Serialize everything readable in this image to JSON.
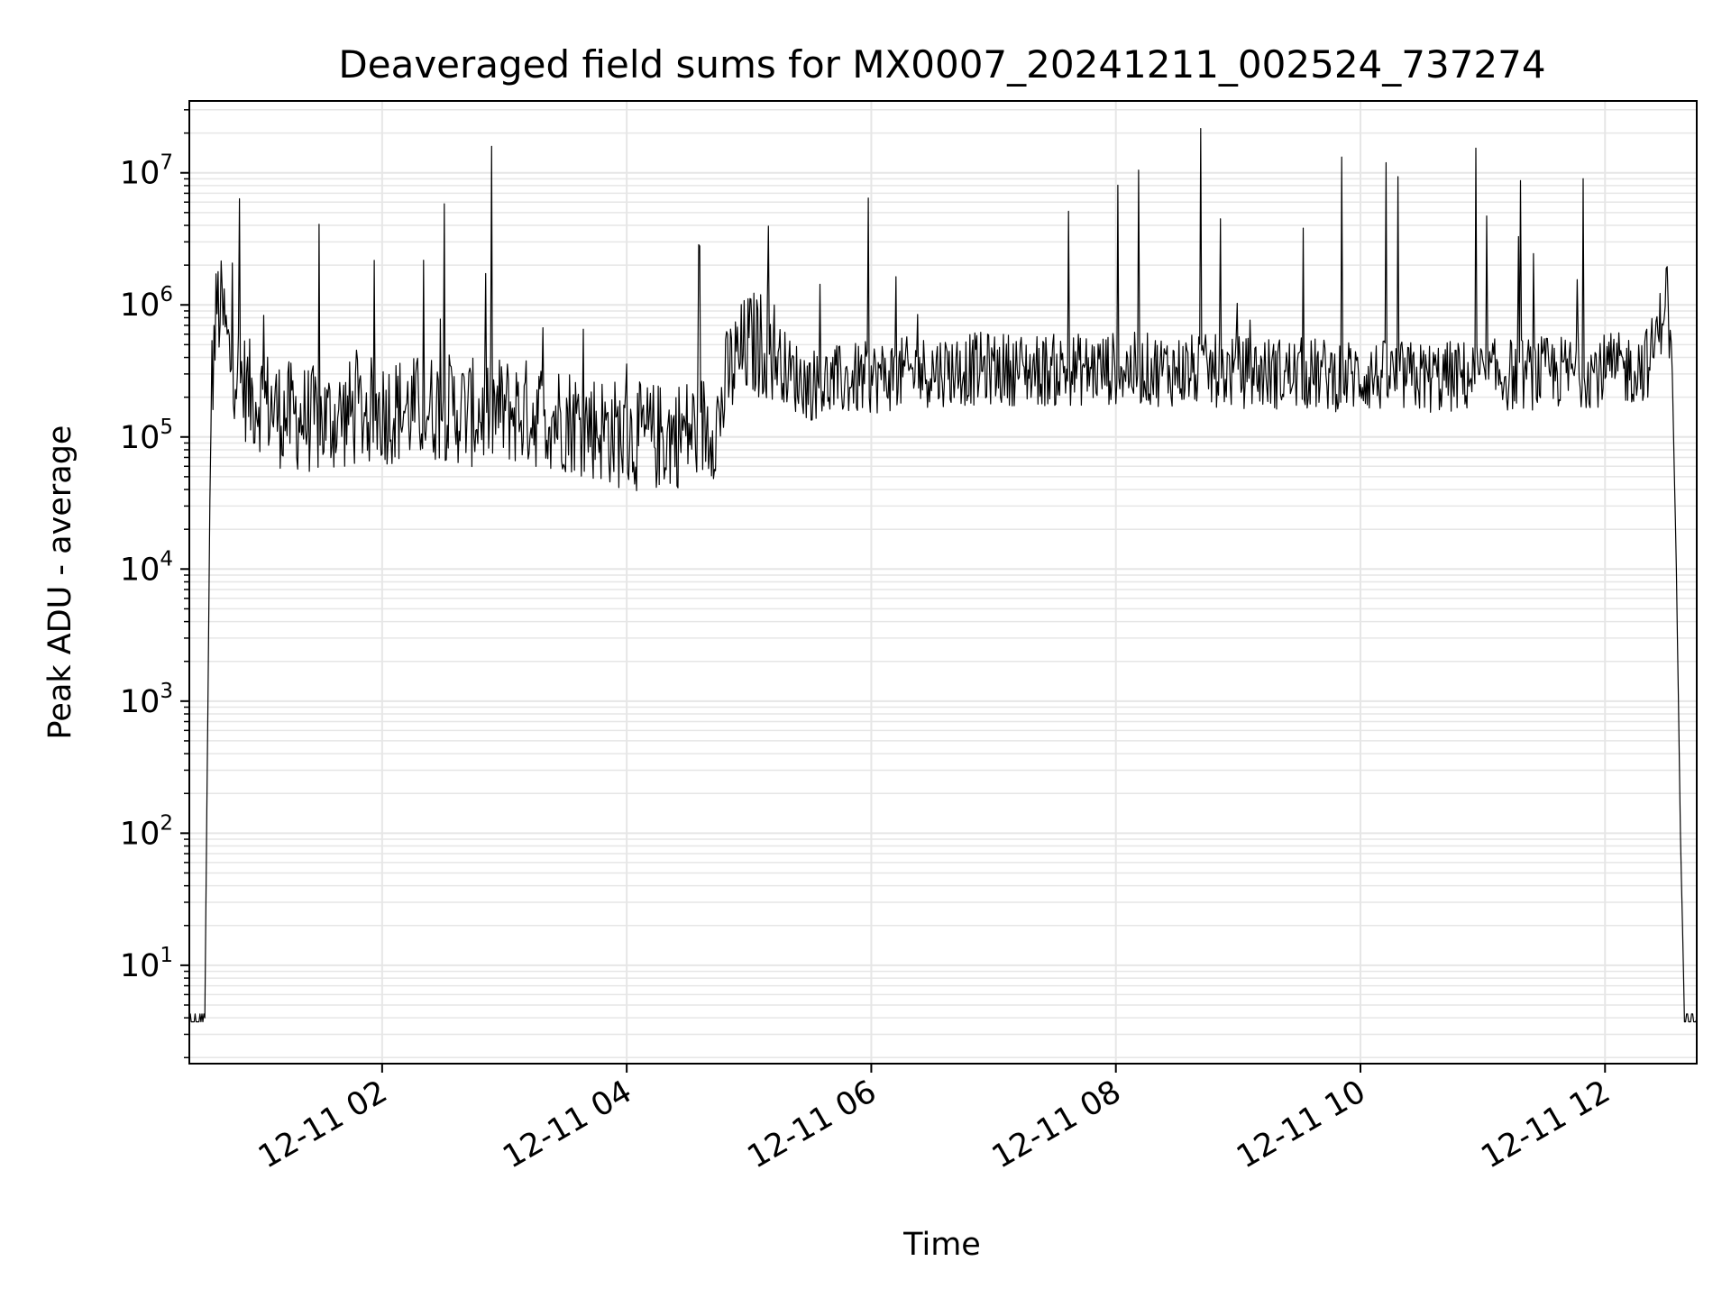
{
  "chart_data": {
    "type": "line",
    "title": "Deaveraged field sums for MX0007_20241211_002524_737274",
    "xlabel": "Time",
    "ylabel": "Peak ADU - average",
    "y_scale": "log",
    "ylim": [
      1.8,
      35000000
    ],
    "xlim": [
      "2024-12-11T00:25:24",
      "2024-12-11T12:45:00"
    ],
    "grid": true,
    "line_color": "#000000",
    "grid_color": "#e6e6e6",
    "x_ticks": [
      {
        "value": "2024-12-11T02:00:00",
        "label": "12-11 02"
      },
      {
        "value": "2024-12-11T04:00:00",
        "label": "12-11 04"
      },
      {
        "value": "2024-12-11T06:00:00",
        "label": "12-11 06"
      },
      {
        "value": "2024-12-11T08:00:00",
        "label": "12-11 08"
      },
      {
        "value": "2024-12-11T10:00:00",
        "label": "12-11 10"
      },
      {
        "value": "2024-12-11T12:00:00",
        "label": "12-11 12"
      }
    ],
    "y_ticks": [
      {
        "value": 10,
        "base": "10",
        "exp": "1"
      },
      {
        "value": 100,
        "base": "10",
        "exp": "2"
      },
      {
        "value": 1000,
        "base": "10",
        "exp": "3"
      },
      {
        "value": 10000,
        "base": "10",
        "exp": "4"
      },
      {
        "value": 100000,
        "base": "10",
        "exp": "5"
      },
      {
        "value": 1000000,
        "base": "10",
        "exp": "6"
      },
      {
        "value": 10000000,
        "base": "10",
        "exp": "7"
      }
    ],
    "series": [
      {
        "x": [
          "2024-12-11T00:25:24",
          "2024-12-11T00:33:00",
          "2024-12-11T00:36:00",
          "2024-12-11T00:39:00",
          "2024-12-11T00:42:00",
          "2024-12-11T00:45:00",
          "2024-12-11T00:48:00",
          "2024-12-11T00:52:00",
          "2024-12-11T00:56:00",
          "2024-12-11T01:00:00",
          "2024-12-11T01:10:00",
          "2024-12-11T01:20:00",
          "2024-12-11T01:30:00",
          "2024-12-11T01:45:00",
          "2024-12-11T02:00:00",
          "2024-12-11T02:15:00",
          "2024-12-11T02:30:00",
          "2024-12-11T02:45:00",
          "2024-12-11T03:00:00",
          "2024-12-11T03:15:00",
          "2024-12-11T03:30:00",
          "2024-12-11T03:45:00",
          "2024-12-11T04:00:00",
          "2024-12-11T04:15:00",
          "2024-12-11T04:30:00",
          "2024-12-11T04:45:00",
          "2024-12-11T04:50:00",
          "2024-12-11T05:00:00",
          "2024-12-11T05:10:00",
          "2024-12-11T05:20:00",
          "2024-12-11T05:30:00",
          "2024-12-11T06:00:00",
          "2024-12-11T06:30:00",
          "2024-12-11T07:00:00",
          "2024-12-11T07:30:00",
          "2024-12-11T08:00:00",
          "2024-12-11T08:30:00",
          "2024-12-11T09:00:00",
          "2024-12-11T09:30:00",
          "2024-12-11T10:00:00",
          "2024-12-11T10:30:00",
          "2024-12-11T11:00:00",
          "2024-12-11T11:20:00",
          "2024-12-11T11:40:00",
          "2024-12-11T12:00:00",
          "2024-12-11T12:15:00",
          "2024-12-11T12:22:00",
          "2024-12-11T12:27:00",
          "2024-12-11T12:30:00",
          "2024-12-11T12:33:00",
          "2024-12-11T12:35:00",
          "2024-12-11T12:37:00",
          "2024-12-11T12:39:00",
          "2024-12-11T12:45:00"
        ],
        "y": [
          4,
          4,
          200000,
          1000000,
          800000,
          400000,
          350000,
          250000,
          200000,
          200000,
          150000,
          140000,
          130000,
          150000,
          160000,
          160000,
          170000,
          150000,
          160000,
          150000,
          140000,
          120000,
          100000,
          100000,
          110000,
          130000,
          300000,
          500000,
          500000,
          300000,
          250000,
          280000,
          320000,
          330000,
          320000,
          330000,
          320000,
          310000,
          300000,
          290000,
          280000,
          290000,
          300000,
          310000,
          320000,
          330000,
          380000,
          700000,
          1500000,
          300000,
          10000,
          100,
          4,
          4
        ]
      }
    ]
  }
}
